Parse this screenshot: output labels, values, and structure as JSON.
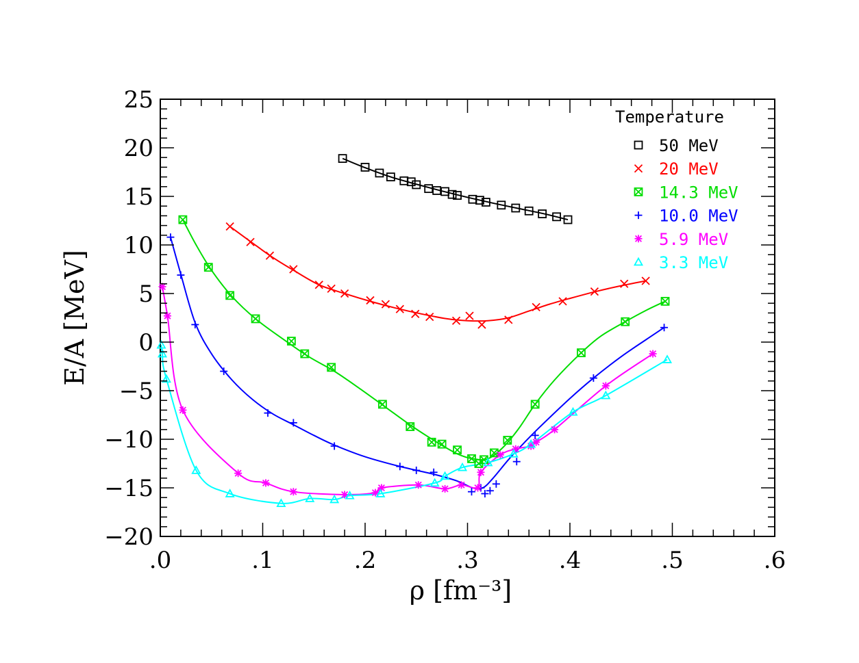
{
  "chart_data": {
    "type": "scatter",
    "xlabel": "ρ [fm⁻³]",
    "ylabel": "E/A [MeV]",
    "xlim": [
      0,
      0.6
    ],
    "ylim": [
      -20,
      25
    ],
    "x_ticks": [
      0,
      0.1,
      0.2,
      0.3,
      0.4,
      0.5,
      0.6
    ],
    "x_tick_labels": [
      ".0",
      ".1",
      ".2",
      ".3",
      ".4",
      ".5",
      ".6"
    ],
    "y_ticks": [
      -20,
      -15,
      -10,
      -5,
      0,
      5,
      10,
      15,
      20,
      25
    ],
    "y_tick_labels": [
      "−20",
      "−15",
      "−10",
      "−5",
      "0",
      "5",
      "10",
      "15",
      "20",
      "25"
    ],
    "legend_title": "Temperature",
    "legend_position": "top-right",
    "grid": false,
    "series": [
      {
        "name": "50 MeV",
        "color": "#000000",
        "marker": "square",
        "points": [
          [
            0.178,
            18.9
          ],
          [
            0.2,
            18.0
          ],
          [
            0.214,
            17.4
          ],
          [
            0.225,
            17.0
          ],
          [
            0.238,
            16.6
          ],
          [
            0.245,
            16.5
          ],
          [
            0.25,
            16.2
          ],
          [
            0.262,
            15.8
          ],
          [
            0.27,
            15.6
          ],
          [
            0.278,
            15.5
          ],
          [
            0.285,
            15.2
          ],
          [
            0.29,
            15.1
          ],
          [
            0.305,
            14.7
          ],
          [
            0.312,
            14.6
          ],
          [
            0.318,
            14.4
          ],
          [
            0.333,
            14.1
          ],
          [
            0.347,
            13.8
          ],
          [
            0.36,
            13.5
          ],
          [
            0.373,
            13.2
          ],
          [
            0.387,
            12.9
          ],
          [
            0.398,
            12.6
          ]
        ],
        "curve": [
          [
            0.178,
            18.9
          ],
          [
            0.2,
            17.95
          ],
          [
            0.225,
            17.0
          ],
          [
            0.25,
            16.25
          ],
          [
            0.275,
            15.55
          ],
          [
            0.3,
            14.9
          ],
          [
            0.325,
            14.3
          ],
          [
            0.35,
            13.75
          ],
          [
            0.375,
            13.2
          ],
          [
            0.398,
            12.6
          ]
        ]
      },
      {
        "name": "20 MeV",
        "color": "#ff0000",
        "marker": "x",
        "points": [
          [
            0.068,
            11.9
          ],
          [
            0.088,
            10.3
          ],
          [
            0.107,
            8.9
          ],
          [
            0.13,
            7.5
          ],
          [
            0.155,
            5.9
          ],
          [
            0.167,
            5.5
          ],
          [
            0.18,
            5.0
          ],
          [
            0.205,
            4.3
          ],
          [
            0.22,
            3.9
          ],
          [
            0.234,
            3.4
          ],
          [
            0.249,
            2.9
          ],
          [
            0.263,
            2.6
          ],
          [
            0.289,
            2.2
          ],
          [
            0.302,
            2.7
          ],
          [
            0.314,
            1.8
          ],
          [
            0.34,
            2.3
          ],
          [
            0.367,
            3.6
          ],
          [
            0.393,
            4.2
          ],
          [
            0.424,
            5.2
          ],
          [
            0.453,
            6.0
          ],
          [
            0.474,
            6.3
          ]
        ],
        "curve": [
          [
            0.068,
            11.9
          ],
          [
            0.09,
            10.2
          ],
          [
            0.11,
            8.7
          ],
          [
            0.13,
            7.4
          ],
          [
            0.155,
            5.9
          ],
          [
            0.18,
            5.0
          ],
          [
            0.205,
            4.2
          ],
          [
            0.23,
            3.5
          ],
          [
            0.255,
            2.9
          ],
          [
            0.28,
            2.4
          ],
          [
            0.3,
            2.2
          ],
          [
            0.32,
            2.2
          ],
          [
            0.34,
            2.5
          ],
          [
            0.36,
            3.2
          ],
          [
            0.38,
            3.9
          ],
          [
            0.4,
            4.5
          ],
          [
            0.425,
            5.2
          ],
          [
            0.45,
            5.8
          ],
          [
            0.474,
            6.3
          ]
        ]
      },
      {
        "name": "14.3 MeV",
        "color": "#00dd00",
        "marker": "boxed-x",
        "points": [
          [
            0.022,
            12.6
          ],
          [
            0.047,
            7.7
          ],
          [
            0.068,
            4.8
          ],
          [
            0.093,
            2.4
          ],
          [
            0.128,
            0.1
          ],
          [
            0.141,
            -1.2
          ],
          [
            0.167,
            -2.6
          ],
          [
            0.217,
            -6.4
          ],
          [
            0.244,
            -8.7
          ],
          [
            0.265,
            -10.3
          ],
          [
            0.275,
            -10.5
          ],
          [
            0.29,
            -11.1
          ],
          [
            0.304,
            -12.0
          ],
          [
            0.311,
            -12.5
          ],
          [
            0.316,
            -12.1
          ],
          [
            0.326,
            -11.4
          ],
          [
            0.339,
            -10.1
          ],
          [
            0.366,
            -6.4
          ],
          [
            0.411,
            -1.1
          ],
          [
            0.454,
            2.1
          ],
          [
            0.493,
            4.2
          ]
        ],
        "curve": [
          [
            0.022,
            12.6
          ],
          [
            0.035,
            10.0
          ],
          [
            0.05,
            7.4
          ],
          [
            0.07,
            4.7
          ],
          [
            0.093,
            2.4
          ],
          [
            0.12,
            0.3
          ],
          [
            0.145,
            -1.5
          ],
          [
            0.17,
            -3.0
          ],
          [
            0.195,
            -4.8
          ],
          [
            0.22,
            -6.7
          ],
          [
            0.245,
            -8.6
          ],
          [
            0.27,
            -10.3
          ],
          [
            0.29,
            -11.5
          ],
          [
            0.305,
            -12.0
          ],
          [
            0.32,
            -12.0
          ],
          [
            0.335,
            -10.8
          ],
          [
            0.35,
            -8.9
          ],
          [
            0.366,
            -6.4
          ],
          [
            0.385,
            -3.9
          ],
          [
            0.41,
            -1.2
          ],
          [
            0.43,
            0.6
          ],
          [
            0.454,
            2.1
          ],
          [
            0.475,
            3.3
          ],
          [
            0.493,
            4.2
          ]
        ]
      },
      {
        "name": "10.0 MeV",
        "color": "#0000ff",
        "marker": "plus",
        "points": [
          [
            0.01,
            10.8
          ],
          [
            0.02,
            6.9
          ],
          [
            0.034,
            1.8
          ],
          [
            0.062,
            -3.0
          ],
          [
            0.105,
            -7.3
          ],
          [
            0.13,
            -8.3
          ],
          [
            0.17,
            -10.7
          ],
          [
            0.234,
            -12.8
          ],
          [
            0.25,
            -13.2
          ],
          [
            0.267,
            -13.4
          ],
          [
            0.304,
            -15.4
          ],
          [
            0.313,
            -15.0
          ],
          [
            0.317,
            -15.6
          ],
          [
            0.322,
            -15.3
          ],
          [
            0.328,
            -14.6
          ],
          [
            0.348,
            -12.3
          ],
          [
            0.366,
            -9.6
          ],
          [
            0.423,
            -3.7
          ],
          [
            0.492,
            1.5
          ]
        ],
        "curve": [
          [
            0.01,
            10.8
          ],
          [
            0.02,
            7.0
          ],
          [
            0.034,
            2.0
          ],
          [
            0.05,
            -1.2
          ],
          [
            0.07,
            -3.9
          ],
          [
            0.09,
            -5.9
          ],
          [
            0.11,
            -7.4
          ],
          [
            0.13,
            -8.5
          ],
          [
            0.15,
            -9.6
          ],
          [
            0.17,
            -10.6
          ],
          [
            0.2,
            -11.8
          ],
          [
            0.234,
            -12.8
          ],
          [
            0.267,
            -13.6
          ],
          [
            0.29,
            -14.3
          ],
          [
            0.305,
            -15.0
          ],
          [
            0.315,
            -15.0
          ],
          [
            0.325,
            -14.0
          ],
          [
            0.34,
            -12.1
          ],
          [
            0.355,
            -10.4
          ],
          [
            0.37,
            -8.8
          ],
          [
            0.4,
            -5.8
          ],
          [
            0.423,
            -3.7
          ],
          [
            0.45,
            -1.5
          ],
          [
            0.475,
            0.3
          ],
          [
            0.492,
            1.5
          ]
        ]
      },
      {
        "name": "5.9 MeV",
        "color": "#ff00ff",
        "marker": "asterisk",
        "points": [
          [
            0.002,
            5.7
          ],
          [
            0.007,
            2.7
          ],
          [
            0.022,
            -7.0
          ],
          [
            0.076,
            -13.5
          ],
          [
            0.103,
            -14.5
          ],
          [
            0.13,
            -15.4
          ],
          [
            0.18,
            -15.7
          ],
          [
            0.21,
            -15.5
          ],
          [
            0.216,
            -15.0
          ],
          [
            0.252,
            -14.7
          ],
          [
            0.278,
            -15.1
          ],
          [
            0.294,
            -14.7
          ],
          [
            0.31,
            -15.0
          ],
          [
            0.313,
            -13.4
          ],
          [
            0.332,
            -11.6
          ],
          [
            0.347,
            -11.0
          ],
          [
            0.362,
            -10.7
          ],
          [
            0.367,
            -10.3
          ],
          [
            0.385,
            -9.0
          ],
          [
            0.435,
            -4.5
          ],
          [
            0.481,
            -1.2
          ]
        ],
        "curve": [
          [
            0.002,
            5.7
          ],
          [
            0.007,
            2.7
          ],
          [
            0.022,
            -7.0
          ],
          [
            0.076,
            -13.5
          ],
          [
            0.103,
            -14.5
          ],
          [
            0.13,
            -15.4
          ],
          [
            0.18,
            -15.7
          ],
          [
            0.21,
            -15.5
          ],
          [
            0.216,
            -15.0
          ],
          [
            0.252,
            -14.7
          ],
          [
            0.278,
            -15.1
          ],
          [
            0.294,
            -14.7
          ],
          [
            0.31,
            -15.0
          ],
          [
            0.313,
            -13.4
          ],
          [
            0.332,
            -11.6
          ],
          [
            0.347,
            -11.0
          ],
          [
            0.362,
            -10.7
          ],
          [
            0.367,
            -10.3
          ],
          [
            0.385,
            -9.0
          ],
          [
            0.435,
            -4.5
          ],
          [
            0.481,
            -1.2
          ]
        ]
      },
      {
        "name": "3.3 MeV",
        "color": "#00ffff",
        "marker": "triangle",
        "points": [
          [
            0.001,
            -0.3
          ],
          [
            0.002,
            -1.2
          ],
          [
            0.006,
            -3.8
          ],
          [
            0.035,
            -13.2
          ],
          [
            0.068,
            -15.6
          ],
          [
            0.118,
            -16.6
          ],
          [
            0.146,
            -16.1
          ],
          [
            0.17,
            -16.2
          ],
          [
            0.185,
            -15.8
          ],
          [
            0.215,
            -15.6
          ],
          [
            0.268,
            -14.5
          ],
          [
            0.278,
            -13.8
          ],
          [
            0.295,
            -12.9
          ],
          [
            0.32,
            -12.4
          ],
          [
            0.345,
            -11.5
          ],
          [
            0.362,
            -10.5
          ],
          [
            0.403,
            -7.2
          ],
          [
            0.435,
            -5.5
          ],
          [
            0.495,
            -1.8
          ]
        ],
        "curve": [
          [
            0.001,
            -0.3
          ],
          [
            0.002,
            -1.2
          ],
          [
            0.006,
            -3.8
          ],
          [
            0.035,
            -13.2
          ],
          [
            0.068,
            -15.6
          ],
          [
            0.118,
            -16.6
          ],
          [
            0.146,
            -16.1
          ],
          [
            0.17,
            -16.2
          ],
          [
            0.185,
            -15.8
          ],
          [
            0.215,
            -15.6
          ],
          [
            0.268,
            -14.5
          ],
          [
            0.278,
            -13.8
          ],
          [
            0.295,
            -12.9
          ],
          [
            0.32,
            -12.4
          ],
          [
            0.345,
            -11.5
          ],
          [
            0.362,
            -10.5
          ],
          [
            0.403,
            -7.2
          ],
          [
            0.435,
            -5.5
          ],
          [
            0.495,
            -1.8
          ]
        ]
      }
    ]
  }
}
